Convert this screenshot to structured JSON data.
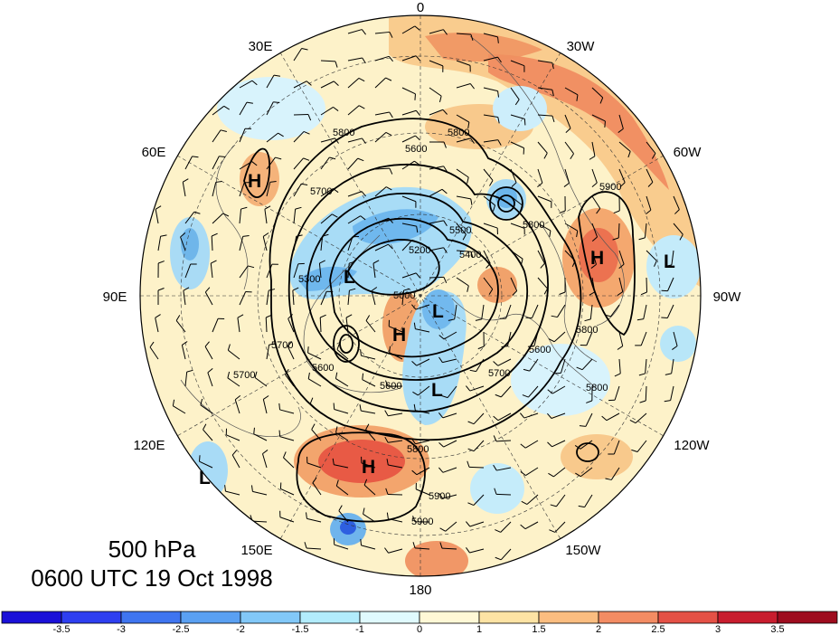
{
  "title": {
    "level": "500 hPa",
    "time": "0600 UTC 19 Oct 1998"
  },
  "longitude_labels": [
    {
      "text": "0",
      "angle": 180
    },
    {
      "text": "30W",
      "angle": 210
    },
    {
      "text": "60W",
      "angle": 240
    },
    {
      "text": "90W",
      "angle": 270
    },
    {
      "text": "120W",
      "angle": 300
    },
    {
      "text": "150W",
      "angle": 330
    },
    {
      "text": "180",
      "angle": 0
    },
    {
      "text": "150E",
      "angle": 30
    },
    {
      "text": "120E",
      "angle": 60
    },
    {
      "text": "90E",
      "angle": 90
    },
    {
      "text": "60E",
      "angle": 120
    },
    {
      "text": "30E",
      "angle": 150
    }
  ],
  "pressure_centers": [
    {
      "label": "H",
      "lon": "60E"
    },
    {
      "label": "H",
      "lon": "55W"
    },
    {
      "label": "L",
      "lon": "80W"
    },
    {
      "label": "L",
      "lon": "80E"
    },
    {
      "label": "H",
      "lon": "175E"
    },
    {
      "label": "L",
      "lon": "165W"
    },
    {
      "label": "H",
      "lon": "140E"
    },
    {
      "label": "L",
      "lon": "115E"
    }
  ],
  "contour_labels": [
    "5800",
    "5600",
    "5800",
    "5700",
    "5800",
    "5500",
    "5400",
    "5200",
    "5000",
    "5300",
    "5600",
    "5700",
    "5600",
    "5800",
    "5800",
    "5800",
    "5600",
    "5900",
    "5700",
    "5700",
    "5900",
    "5900"
  ],
  "colorbar": {
    "ticks": [
      "-3.5",
      "-3",
      "-2.5",
      "-2",
      "-1.5",
      "-1",
      "0",
      "1",
      "1.5",
      "2",
      "2.5",
      "3",
      "3.5"
    ],
    "colors": [
      "#1a10d8",
      "#2e3ff0",
      "#3f75f0",
      "#5aa0f2",
      "#82c8f8",
      "#b2ecfc",
      "#e0fafe",
      "#fff8d6",
      "#fde3a4",
      "#fbbd80",
      "#f38c63",
      "#e45146",
      "#c81d2e",
      "#9e0c1e"
    ]
  }
}
